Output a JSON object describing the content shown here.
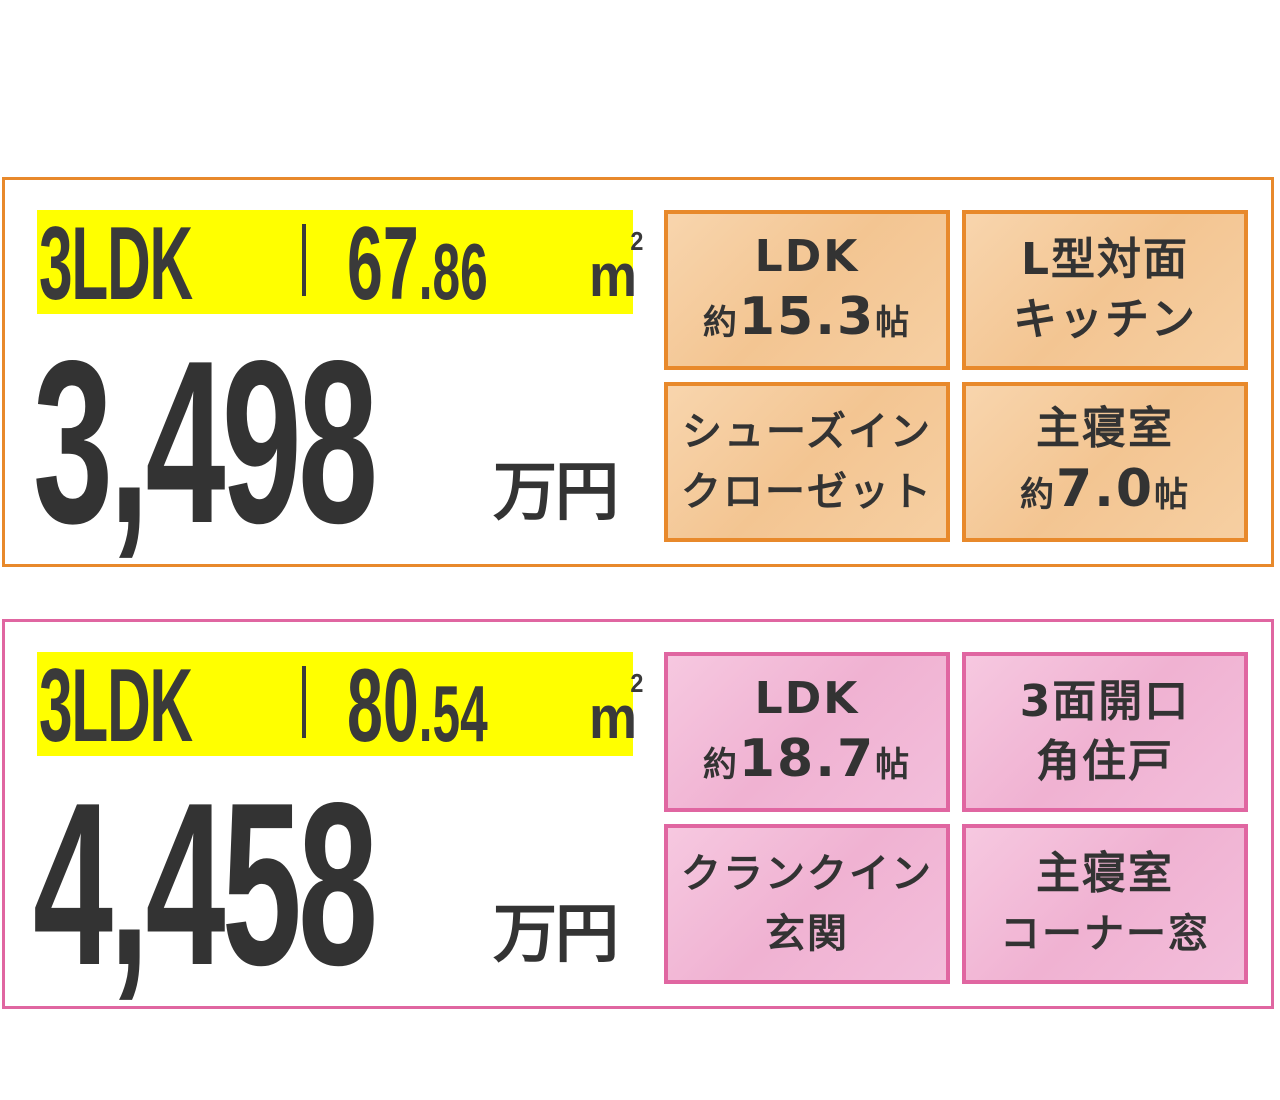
{
  "listings": [
    {
      "layout": "3LDK",
      "area_int": "67",
      "area_dec": ".86",
      "area_unit": "m",
      "area_unit_sup": "2",
      "price": "3,498",
      "price_unit": "万円",
      "theme_color": "#e8892b",
      "features": [
        {
          "line1": "LDK",
          "line2_prefix": "約",
          "line2_value": "15.3",
          "line2_suffix": "帖"
        },
        {
          "line1": "L型対面",
          "line2": "キッチン"
        },
        {
          "line1": "シューズイン",
          "line2": "クローゼット"
        },
        {
          "line1": "主寝室",
          "line2_prefix": "約",
          "line2_value": "7.0",
          "line2_suffix": "帖"
        }
      ]
    },
    {
      "layout": "3LDK",
      "area_int": "80",
      "area_dec": ".54",
      "area_unit": "m",
      "area_unit_sup": "2",
      "price": "4,458",
      "price_unit": "万円",
      "theme_color": "#e066a1",
      "features": [
        {
          "line1": "LDK",
          "line2_prefix": "約",
          "line2_value": "18.7",
          "line2_suffix": "帖"
        },
        {
          "line1": "3面開口",
          "line2": "角住戸"
        },
        {
          "line1": "クランクイン",
          "line2": "玄関"
        },
        {
          "line1": "主寝室",
          "line2": "コーナー窓"
        }
      ]
    }
  ]
}
